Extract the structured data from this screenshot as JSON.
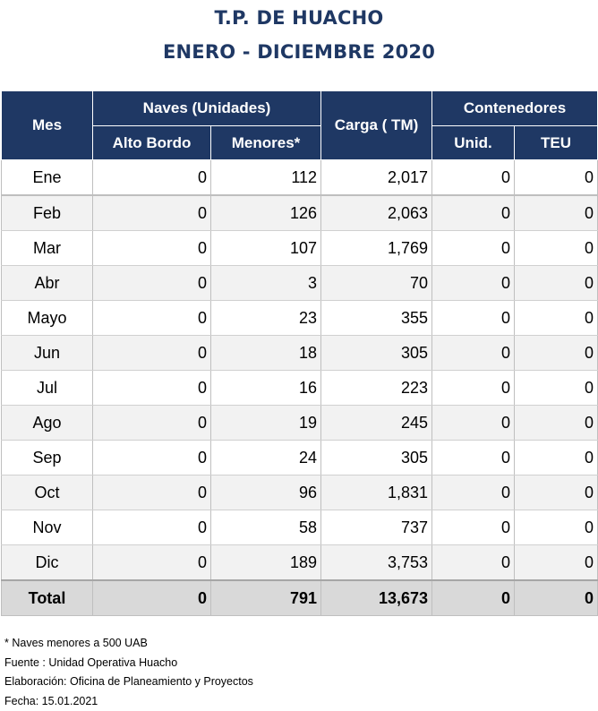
{
  "title": {
    "line1": "T.P. DE HUACHO",
    "line2": "ENERO - DICIEMBRE 2020"
  },
  "table": {
    "headers": {
      "mes": "Mes",
      "naves": "Naves (Unidades)",
      "alto_bordo": "Alto Bordo",
      "menores": "Menores*",
      "carga": "Carga ( TM)",
      "contenedores": "Contenedores",
      "unid": "Unid.",
      "teu": "TEU"
    },
    "rows": [
      {
        "mes": "Ene",
        "alto_bordo": "0",
        "menores": "112",
        "carga": "2,017",
        "unid": "0",
        "teu": "0"
      },
      {
        "mes": "Feb",
        "alto_bordo": "0",
        "menores": "126",
        "carga": "2,063",
        "unid": "0",
        "teu": "0"
      },
      {
        "mes": "Mar",
        "alto_bordo": "0",
        "menores": "107",
        "carga": "1,769",
        "unid": "0",
        "teu": "0"
      },
      {
        "mes": "Abr",
        "alto_bordo": "0",
        "menores": "3",
        "carga": "70",
        "unid": "0",
        "teu": "0"
      },
      {
        "mes": "Mayo",
        "alto_bordo": "0",
        "menores": "23",
        "carga": "355",
        "unid": "0",
        "teu": "0"
      },
      {
        "mes": "Jun",
        "alto_bordo": "0",
        "menores": "18",
        "carga": "305",
        "unid": "0",
        "teu": "0"
      },
      {
        "mes": "Jul",
        "alto_bordo": "0",
        "menores": "16",
        "carga": "223",
        "unid": "0",
        "teu": "0"
      },
      {
        "mes": "Ago",
        "alto_bordo": "0",
        "menores": "19",
        "carga": "245",
        "unid": "0",
        "teu": "0"
      },
      {
        "mes": "Sep",
        "alto_bordo": "0",
        "menores": "24",
        "carga": "305",
        "unid": "0",
        "teu": "0"
      },
      {
        "mes": "Oct",
        "alto_bordo": "0",
        "menores": "96",
        "carga": "1,831",
        "unid": "0",
        "teu": "0"
      },
      {
        "mes": "Nov",
        "alto_bordo": "0",
        "menores": "58",
        "carga": "737",
        "unid": "0",
        "teu": "0"
      },
      {
        "mes": "Dic",
        "alto_bordo": "0",
        "menores": "189",
        "carga": "3,753",
        "unid": "0",
        "teu": "0"
      }
    ],
    "total": {
      "mes": "Total",
      "alto_bordo": "0",
      "menores": "791",
      "carga": "13,673",
      "unid": "0",
      "teu": "0"
    }
  },
  "notes": {
    "note": "* Naves menores a 500 UAB",
    "fuente": "Fuente : Unidad Operativa Huacho",
    "elaboracion": "Elaboración: Oficina de Planeamiento y Proyectos",
    "fecha": "Fecha: 15.01.2021"
  },
  "colors": {
    "title": "#1f3864",
    "header_bg": "#1f3864",
    "header_text": "#ffffff",
    "alt_row": "#f2f2f2",
    "total_row": "#d9d9d9"
  }
}
